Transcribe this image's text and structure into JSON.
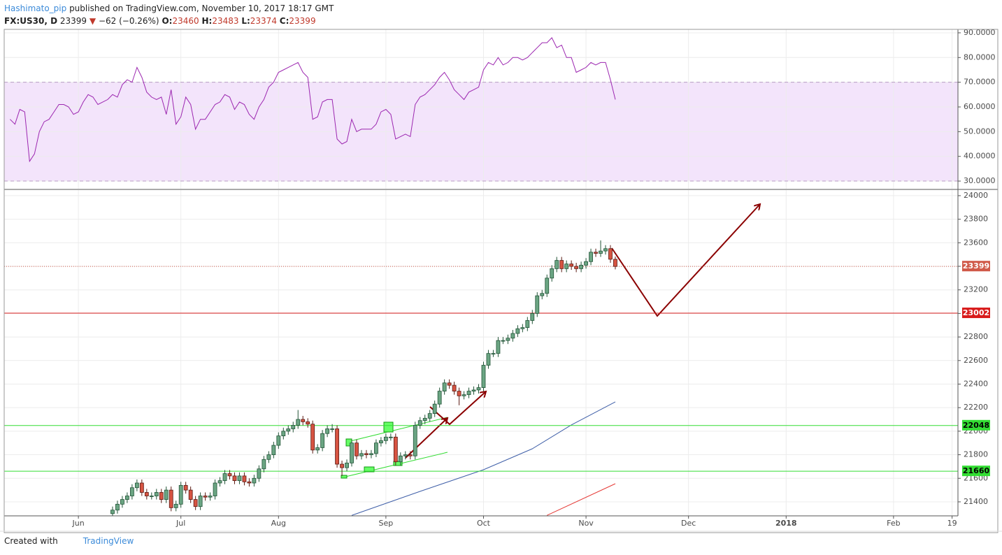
{
  "header": {
    "author": "Hashimato_pip",
    "published": "published on TradingView.com, November 10, 2017 18:17 GMT",
    "symbol": "FX:US30, D",
    "last": 23399,
    "direction": "▼",
    "change": "−62 (−0.26%)",
    "open_label": "O:",
    "open": 23460,
    "high_label": "H:",
    "high": 23483,
    "low_label": "L:",
    "low": 23374,
    "close_label": "C:",
    "close": 23399
  },
  "footer": {
    "text": "Created with",
    "brand": "TradingView"
  },
  "chart_data": [
    {
      "type": "line",
      "xlim": [
        -15.2,
        180.2
      ],
      "ylim": [
        26.9,
        91.4
      ],
      "yticks": [
        {
          "value": 30,
          "label": "30.0000"
        },
        {
          "value": 40,
          "label": "40.0000"
        },
        {
          "value": 50,
          "label": "50.0000"
        },
        {
          "value": 60,
          "label": "60.0000"
        },
        {
          "value": 70,
          "label": "70.0000"
        },
        {
          "value": 80,
          "label": "80.0000"
        },
        {
          "value": 90,
          "label": "90.0000"
        }
      ],
      "band": [
        30,
        70
      ],
      "band_color": "#f3e4fb",
      "grid": true,
      "series": [
        {
          "color": "#9c27b0",
          "x": [
            -14,
            -13,
            -12,
            -11,
            -10,
            -9,
            -8,
            -7,
            -6,
            -5,
            -4,
            -3,
            -2,
            -1,
            0,
            1,
            2,
            3,
            4,
            5,
            6,
            7,
            8,
            9,
            10,
            11,
            12,
            13,
            14,
            15,
            16,
            17,
            18,
            19,
            20,
            21,
            22,
            23,
            24,
            25,
            26,
            27,
            28,
            29,
            30,
            31,
            32,
            33,
            34,
            35,
            36,
            37,
            38,
            39,
            40,
            41,
            42,
            43,
            44,
            45,
            46,
            47,
            48,
            49,
            50,
            51,
            52,
            53,
            54,
            55,
            56,
            57,
            58,
            59,
            60,
            61,
            62,
            63,
            64,
            65,
            66,
            67,
            68,
            69,
            70,
            71,
            72,
            73,
            74,
            75,
            76,
            77,
            78,
            79,
            80,
            81,
            82,
            83,
            84,
            85,
            86,
            87,
            88,
            89,
            90,
            91,
            92,
            93,
            94,
            95,
            96,
            97,
            98,
            99,
            100,
            101,
            102,
            103,
            104,
            105,
            106,
            107,
            108,
            109,
            110
          ],
          "values": [
            55,
            53,
            59,
            58,
            38,
            41,
            50,
            54,
            55,
            58,
            61,
            61,
            60,
            57,
            58,
            62,
            65,
            64,
            61,
            62,
            63,
            65,
            64,
            69,
            71,
            70,
            76,
            72,
            66,
            64,
            63,
            64,
            57,
            67,
            53,
            56,
            64,
            61,
            51,
            55,
            55,
            58,
            61,
            62,
            65,
            64,
            59,
            62,
            61,
            57,
            55,
            60,
            63,
            68,
            70,
            74,
            75,
            76,
            77,
            78,
            74,
            72,
            55,
            56,
            62,
            63,
            63,
            47,
            45,
            46,
            55,
            50,
            51,
            51,
            51,
            53,
            58,
            59,
            57,
            47,
            48,
            49,
            48,
            61,
            64,
            65,
            67,
            69,
            72,
            74,
            71,
            67,
            65,
            63,
            66,
            67,
            68,
            75,
            78,
            77,
            80,
            77,
            78,
            80,
            80,
            79,
            80,
            82,
            84,
            86,
            86,
            88,
            84,
            85,
            80,
            80,
            74,
            75,
            76,
            78,
            77,
            78,
            78,
            71,
            63
          ]
        }
      ]
    },
    {
      "type": "candlestick",
      "xlim": [
        -15.2,
        180.2
      ],
      "ylim": [
        21281,
        24047
      ],
      "grid": true,
      "xticks": [
        {
          "value": 0,
          "label": "Jun"
        },
        {
          "value": 21,
          "label": "Jul"
        },
        {
          "value": 41,
          "label": "Aug"
        },
        {
          "value": 63,
          "label": "Sep"
        },
        {
          "value": 83,
          "label": "Oct"
        },
        {
          "value": 104,
          "label": "Nov"
        },
        {
          "value": 125,
          "label": "Dec"
        },
        {
          "value": 145,
          "label": "2018"
        },
        {
          "value": 167,
          "label": "Feb"
        },
        {
          "value": 179,
          "label": "19"
        }
      ],
      "yticks": [
        21400,
        21600,
        21800,
        22000,
        22200,
        22400,
        22600,
        22800,
        23000,
        23200,
        23400,
        23600,
        23800,
        24000
      ],
      "up_color": "#6ba583",
      "down_color": "#d75442",
      "x": [
        7,
        8,
        9,
        10,
        11,
        12,
        13,
        14,
        15,
        16,
        17,
        18,
        19,
        20,
        21,
        22,
        23,
        24,
        25,
        26,
        27,
        28,
        29,
        30,
        31,
        32,
        33,
        34,
        35,
        36,
        37,
        38,
        39,
        40,
        41,
        42,
        43,
        44,
        45,
        46,
        47,
        48,
        49,
        50,
        51,
        52,
        53,
        54,
        55,
        56,
        57,
        58,
        59,
        60,
        61,
        62,
        63,
        64,
        65,
        66,
        67,
        68,
        69,
        70,
        71,
        72,
        73,
        74,
        75,
        76,
        77,
        78,
        79,
        80,
        81,
        82,
        83,
        84,
        85,
        86,
        87,
        88,
        89,
        90,
        91,
        92,
        93,
        94,
        95,
        96,
        97,
        98,
        99,
        100,
        101,
        102,
        103,
        104,
        105,
        106,
        107,
        108,
        109,
        110
      ],
      "open": [
        21300,
        21330,
        21380,
        21420,
        21450,
        21520,
        21560,
        21480,
        21450,
        21450,
        21480,
        21420,
        21500,
        21350,
        21380,
        21540,
        21500,
        21420,
        21360,
        21450,
        21440,
        21450,
        21560,
        21580,
        21640,
        21620,
        21580,
        21620,
        21570,
        21560,
        21600,
        21680,
        21760,
        21800,
        21880,
        21960,
        22000,
        22020,
        22050,
        22100,
        22080,
        22060,
        21840,
        21860,
        21980,
        22020,
        22020,
        21720,
        21690,
        21730,
        21900,
        21790,
        21810,
        21800,
        21810,
        21900,
        21920,
        21950,
        21950,
        21740,
        21790,
        21800,
        21790,
        22050,
        22090,
        22110,
        22150,
        22230,
        22340,
        22410,
        22390,
        22340,
        22300,
        22310,
        22340,
        22350,
        22370,
        22560,
        22660,
        22660,
        22770,
        22770,
        22790,
        22830,
        22870,
        22880,
        22940,
        23000,
        23150,
        23170,
        23300,
        23380,
        23450,
        23380,
        23420,
        23400,
        23380,
        23410,
        23440,
        23520,
        23510,
        23530,
        23550,
        23460
      ],
      "high": [
        21360,
        21410,
        21450,
        21480,
        21550,
        21590,
        21590,
        21510,
        21480,
        21510,
        21510,
        21530,
        21530,
        21410,
        21570,
        21570,
        21530,
        21450,
        21480,
        21480,
        21480,
        21590,
        21610,
        21670,
        21670,
        21650,
        21650,
        21650,
        21600,
        21630,
        21710,
        21790,
        21830,
        21910,
        21990,
        22030,
        22050,
        22080,
        22180,
        22130,
        22110,
        22090,
        21890,
        22010,
        22050,
        22060,
        22050,
        21750,
        21760,
        21930,
        21930,
        21840,
        21840,
        21840,
        21930,
        21950,
        21980,
        21980,
        21980,
        21820,
        21830,
        21830,
        22080,
        22120,
        22140,
        22180,
        22260,
        22370,
        22440,
        22440,
        22420,
        22370,
        22340,
        22370,
        22380,
        22400,
        22590,
        22690,
        22690,
        22800,
        22800,
        22820,
        22860,
        22900,
        22910,
        22970,
        23030,
        23180,
        23200,
        23330,
        23410,
        23480,
        23480,
        23450,
        23450,
        23430,
        23440,
        23470,
        23550,
        23550,
        23620,
        23580,
        23580,
        23483
      ],
      "low": [
        21270,
        21300,
        21350,
        21390,
        21420,
        21490,
        21450,
        21420,
        21420,
        21420,
        21390,
        21390,
        21320,
        21320,
        21350,
        21470,
        21390,
        21330,
        21330,
        21410,
        21410,
        21420,
        21530,
        21550,
        21590,
        21550,
        21550,
        21540,
        21530,
        21530,
        21570,
        21650,
        21730,
        21770,
        21850,
        21930,
        21970,
        21990,
        22020,
        22050,
        22030,
        21810,
        21810,
        21830,
        21950,
        21990,
        21690,
        21620,
        21660,
        21700,
        21760,
        21760,
        21770,
        21770,
        21780,
        21870,
        21890,
        21920,
        21710,
        21710,
        21760,
        21760,
        21760,
        22020,
        22060,
        22080,
        22120,
        22200,
        22310,
        22360,
        22310,
        22220,
        22270,
        22280,
        22310,
        22320,
        22340,
        22530,
        22630,
        22630,
        22740,
        22740,
        22760,
        22800,
        22840,
        22850,
        22910,
        22970,
        23120,
        23140,
        23270,
        23350,
        23350,
        23350,
        23370,
        23350,
        23350,
        23380,
        23410,
        23480,
        23480,
        23500,
        23430,
        23374
      ],
      "close": [
        21330,
        21380,
        21420,
        21450,
        21520,
        21560,
        21480,
        21450,
        21450,
        21480,
        21420,
        21500,
        21350,
        21380,
        21540,
        21500,
        21420,
        21360,
        21450,
        21440,
        21450,
        21560,
        21580,
        21640,
        21620,
        21580,
        21620,
        21570,
        21560,
        21600,
        21680,
        21760,
        21800,
        21880,
        21960,
        22000,
        22020,
        22050,
        22100,
        22080,
        22060,
        21840,
        21860,
        21980,
        22020,
        22020,
        21720,
        21690,
        21730,
        21900,
        21790,
        21810,
        21800,
        21810,
        21900,
        21920,
        21950,
        21950,
        21740,
        21790,
        21800,
        21790,
        22050,
        22090,
        22110,
        22150,
        22230,
        22340,
        22410,
        22390,
        22340,
        22300,
        22310,
        22340,
        22350,
        22370,
        22560,
        22660,
        22660,
        22770,
        22770,
        22790,
        22830,
        22870,
        22880,
        22940,
        23000,
        23150,
        23170,
        23300,
        23380,
        23450,
        23380,
        23420,
        23400,
        23380,
        23410,
        23440,
        23520,
        23510,
        23530,
        23550,
        23460,
        23399
      ],
      "lines": [
        {
          "color": "#3f5fa8",
          "x": [
            56,
            70,
            83,
            93,
            101,
            110
          ],
          "values": [
            21285,
            21489,
            21673,
            21851,
            22053,
            22249
          ]
        },
        {
          "color": "#e53935",
          "x": [
            96,
            110
          ],
          "values": [
            21285,
            21554
          ]
        }
      ],
      "price_lines": [
        {
          "value": 23399,
          "color": "#d05a4a",
          "style": "dotted"
        },
        {
          "value": 23002,
          "color": "#d81b1b",
          "style": "solid"
        },
        {
          "value": 22048,
          "color": "#33dd33",
          "style": "solid"
        },
        {
          "value": 21660,
          "color": "#33dd33",
          "style": "solid"
        }
      ]
    }
  ]
}
